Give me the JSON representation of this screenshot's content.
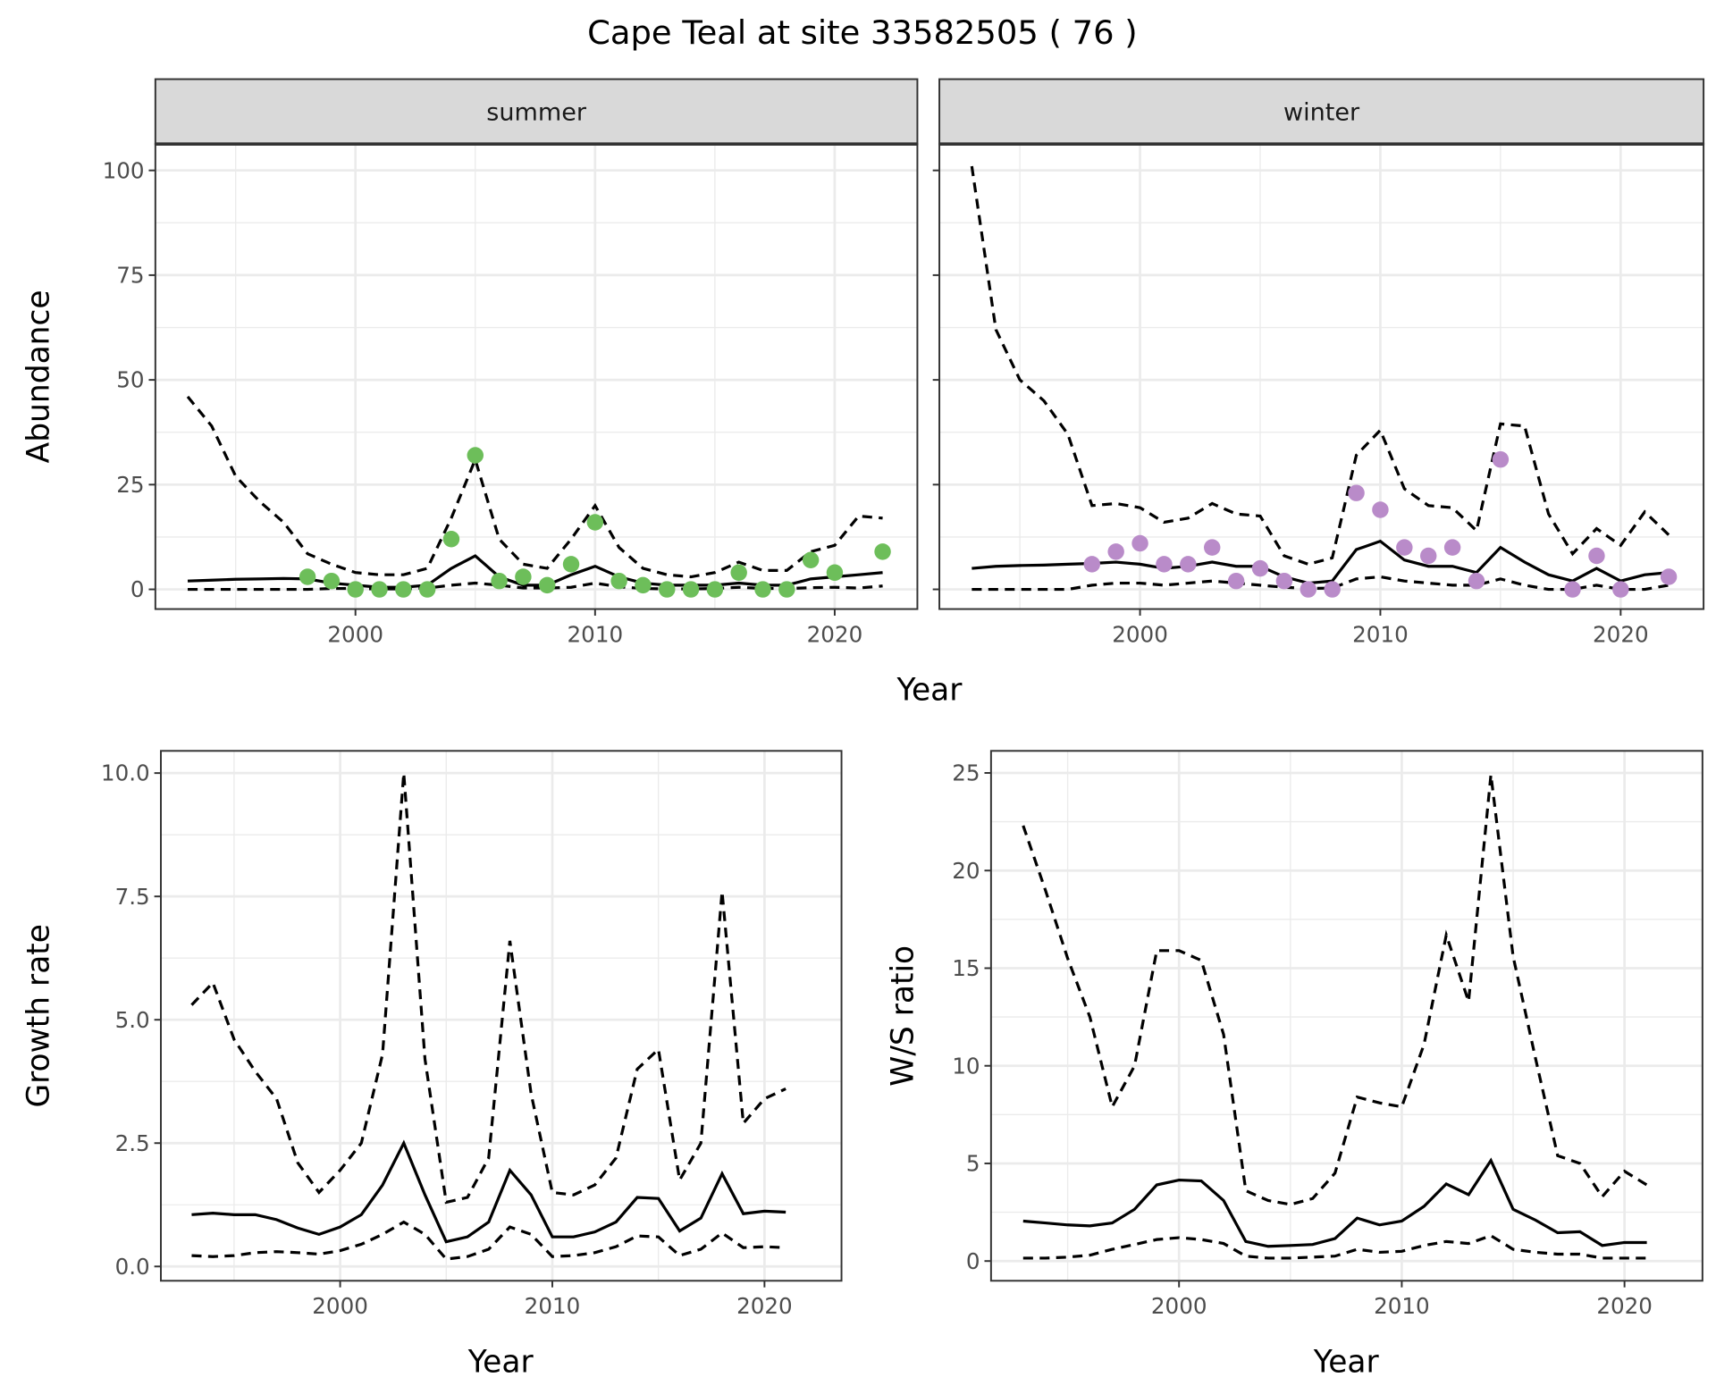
{
  "title": "Cape Teal at site 33582505 ( 76 )",
  "colors": {
    "summer": "#6dbe5a",
    "winter": "#b98bc9",
    "line": "#000000",
    "grid": "#ebebeb"
  },
  "chart_data": [
    {
      "type": "line",
      "panel": "summer",
      "strip_label": "summer",
      "xlabel": "Year",
      "ylabel": "Abundance",
      "xlim": [
        1991.65,
        2023.45
      ],
      "ylim": [
        -4.7,
        106.3
      ],
      "xticks": [
        "2000",
        "2010",
        "2020"
      ],
      "xtick_values": [
        2000,
        2010,
        2020
      ],
      "yticks": [
        "0",
        "25",
        "50",
        "75",
        "100"
      ],
      "ytick_values": [
        0,
        25,
        50,
        75,
        100
      ],
      "x": [
        1993,
        1994,
        1995,
        1996,
        1997,
        1998,
        1999,
        2000,
        2001,
        2002,
        2003,
        2004,
        2005,
        2006,
        2007,
        2008,
        2009,
        2010,
        2011,
        2012,
        2013,
        2014,
        2015,
        2016,
        2017,
        2018,
        2019,
        2020,
        2021,
        2022
      ],
      "series": [
        {
          "name": "mean",
          "style": "solid",
          "values": [
            2,
            2.2,
            2.4,
            2.5,
            2.6,
            2.5,
            1.5,
            1,
            0.5,
            0.5,
            1,
            5,
            8,
            3,
            1,
            1,
            3.5,
            5.5,
            3,
            1.5,
            1,
            1,
            1,
            1.5,
            1,
            1,
            2.5,
            3,
            3.5,
            4
          ]
        },
        {
          "name": "upper",
          "style": "dashed",
          "values": [
            46,
            39,
            27,
            21,
            16,
            8.5,
            6,
            4,
            3.5,
            3.5,
            5,
            17,
            31,
            12,
            6,
            5,
            12,
            20,
            10,
            5,
            3.5,
            3,
            4,
            6.5,
            4.5,
            4.5,
            9,
            10.5,
            17.5,
            17
          ]
        },
        {
          "name": "lower",
          "style": "dashed",
          "values": [
            0,
            0,
            0,
            0,
            0,
            0,
            0.2,
            0.2,
            0.1,
            0.1,
            0.3,
            1,
            1.5,
            1,
            0.3,
            0.3,
            0.5,
            1.5,
            0.6,
            0.2,
            0.1,
            0.1,
            0.2,
            0.5,
            0.2,
            0.2,
            0.4,
            0.5,
            0.3,
            0.8
          ]
        }
      ],
      "points": {
        "x": [
          1998,
          1999,
          2000,
          2001,
          2002,
          2003,
          2004,
          2005,
          2006,
          2007,
          2008,
          2009,
          2010,
          2011,
          2012,
          2013,
          2014,
          2015,
          2016,
          2017,
          2018,
          2019,
          2020,
          2022
        ],
        "y": [
          3,
          2,
          0,
          0,
          0,
          0,
          12,
          32,
          2,
          3,
          1,
          6,
          16,
          2,
          1,
          0,
          0,
          0,
          4,
          0,
          0,
          7,
          4,
          9
        ]
      }
    },
    {
      "type": "line",
      "panel": "winter",
      "strip_label": "winter",
      "xlabel": "Year",
      "ylabel": "Abundance",
      "xlim": [
        1991.65,
        2023.45
      ],
      "ylim": [
        -4.7,
        106.3
      ],
      "xticks": [
        "2000",
        "2010",
        "2020"
      ],
      "xtick_values": [
        2000,
        2010,
        2020
      ],
      "yticks": [],
      "ytick_values": [
        0,
        25,
        50,
        75,
        100
      ],
      "x": [
        1993,
        1994,
        1995,
        1996,
        1997,
        1998,
        1999,
        2000,
        2001,
        2002,
        2003,
        2004,
        2005,
        2006,
        2007,
        2008,
        2009,
        2010,
        2011,
        2012,
        2013,
        2014,
        2015,
        2016,
        2017,
        2018,
        2019,
        2020,
        2021,
        2022
      ],
      "series": [
        {
          "name": "mean",
          "style": "solid",
          "values": [
            5,
            5.5,
            5.7,
            5.8,
            6,
            6.2,
            6.5,
            6,
            5,
            5.5,
            6.5,
            5.5,
            5.5,
            3,
            1.5,
            2,
            9.5,
            11.5,
            7,
            5.5,
            5.5,
            4,
            10,
            6.5,
            3.5,
            2,
            5,
            2,
            3.5,
            4
          ]
        },
        {
          "name": "upper",
          "style": "dashed",
          "values": [
            101,
            62,
            50,
            45,
            37,
            20,
            20.5,
            19.5,
            16,
            17,
            20.5,
            18,
            17.5,
            8,
            6,
            7.5,
            32,
            38,
            24,
            20,
            19.5,
            14,
            39.5,
            39,
            18,
            8.5,
            14.5,
            10.5,
            18.5,
            13
          ]
        },
        {
          "name": "lower",
          "style": "dashed",
          "values": [
            0,
            0,
            0,
            0,
            0,
            1,
            1.5,
            1.5,
            1,
            1.5,
            2,
            1.5,
            1,
            0.5,
            0.2,
            0.3,
            2.5,
            3,
            2,
            1.5,
            1,
            1,
            2.5,
            1,
            0,
            0,
            1,
            0,
            0,
            1
          ]
        }
      ],
      "points": {
        "x": [
          1998,
          1999,
          2000,
          2001,
          2002,
          2003,
          2004,
          2005,
          2006,
          2007,
          2008,
          2009,
          2010,
          2011,
          2012,
          2013,
          2014,
          2015,
          2018,
          2019,
          2020,
          2022
        ],
        "y": [
          6,
          9,
          11,
          6,
          6,
          10,
          2,
          5,
          2,
          0,
          0,
          23,
          19,
          10,
          8,
          10,
          2,
          31,
          0,
          8,
          0,
          3
        ]
      }
    },
    {
      "type": "line",
      "panel": "growth",
      "xlabel": "Year",
      "ylabel": "Growth rate",
      "xlim": [
        1991.55,
        2023.63
      ],
      "ylim": [
        -0.29,
        10.45
      ],
      "xticks": [
        "2000",
        "2010",
        "2020"
      ],
      "xtick_values": [
        2000,
        2010,
        2020
      ],
      "yticks": [
        "0.0",
        "2.5",
        "5.0",
        "7.5",
        "10.0"
      ],
      "ytick_values": [
        0,
        2.5,
        5,
        7.5,
        10
      ],
      "x": [
        1993,
        1994,
        1995,
        1996,
        1997,
        1998,
        1999,
        2000,
        2001,
        2002,
        2003,
        2004,
        2005,
        2006,
        2007,
        2008,
        2009,
        2010,
        2011,
        2012,
        2013,
        2014,
        2015,
        2016,
        2017,
        2018,
        2019,
        2020,
        2021
      ],
      "series": [
        {
          "name": "mean",
          "style": "solid",
          "values": [
            1.05,
            1.08,
            1.05,
            1.05,
            0.95,
            0.78,
            0.65,
            0.8,
            1.05,
            1.65,
            2.5,
            1.45,
            0.5,
            0.6,
            0.9,
            1.95,
            1.45,
            0.6,
            0.6,
            0.7,
            0.9,
            1.4,
            1.38,
            0.72,
            0.98,
            1.88,
            1.07,
            1.12,
            1.1
          ]
        },
        {
          "name": "upper",
          "style": "dashed",
          "values": [
            5.3,
            5.75,
            4.6,
            3.95,
            3.4,
            2.1,
            1.5,
            1.95,
            2.5,
            4.3,
            10.0,
            4.2,
            1.3,
            1.4,
            2.2,
            6.6,
            3.5,
            1.5,
            1.45,
            1.65,
            2.2,
            4.0,
            4.4,
            1.75,
            2.5,
            7.6,
            2.9,
            3.4,
            3.6
          ]
        },
        {
          "name": "lower",
          "style": "dashed",
          "values": [
            0.22,
            0.2,
            0.22,
            0.28,
            0.3,
            0.28,
            0.25,
            0.32,
            0.45,
            0.65,
            0.9,
            0.65,
            0.15,
            0.2,
            0.35,
            0.8,
            0.65,
            0.2,
            0.22,
            0.28,
            0.4,
            0.62,
            0.6,
            0.22,
            0.35,
            0.68,
            0.38,
            0.4,
            0.38
          ]
        }
      ]
    },
    {
      "type": "line",
      "panel": "ratio",
      "xlabel": "Year",
      "ylabel": "W/S ratio",
      "xlim": [
        1991.56,
        2023.5
      ],
      "ylim": [
        -1.01,
        26.13
      ],
      "xticks": [
        "2000",
        "2010",
        "2020"
      ],
      "xtick_values": [
        2000,
        2010,
        2020
      ],
      "yticks": [
        "0",
        "5",
        "10",
        "15",
        "20",
        "25"
      ],
      "ytick_values": [
        0,
        5,
        10,
        15,
        20,
        25
      ],
      "x": [
        1993,
        1994,
        1995,
        1996,
        1997,
        1998,
        1999,
        2000,
        2001,
        2002,
        2003,
        2004,
        2005,
        2006,
        2007,
        2008,
        2009,
        2010,
        2011,
        2012,
        2013,
        2014,
        2015,
        2016,
        2017,
        2018,
        2019,
        2020,
        2021
      ],
      "series": [
        {
          "name": "mean",
          "style": "solid",
          "values": [
            2.05,
            1.95,
            1.85,
            1.8,
            1.95,
            2.65,
            3.9,
            4.15,
            4.1,
            3.1,
            1.0,
            0.75,
            0.8,
            0.85,
            1.15,
            2.2,
            1.85,
            2.05,
            2.8,
            3.95,
            3.4,
            5.15,
            2.65,
            2.1,
            1.45,
            1.5,
            0.8,
            0.95,
            0.95
          ]
        },
        {
          "name": "upper",
          "style": "dashed",
          "values": [
            22.3,
            19,
            15.5,
            12.5,
            7.9,
            10,
            15.9,
            15.9,
            15.4,
            11.6,
            3.6,
            3.1,
            2.9,
            3.2,
            4.5,
            8.4,
            8.1,
            7.9,
            11.1,
            16.7,
            13.3,
            24.9,
            15.6,
            10.4,
            5.4,
            5.0,
            3.3,
            4.6,
            3.9
          ]
        },
        {
          "name": "lower",
          "style": "dashed",
          "values": [
            0.15,
            0.15,
            0.2,
            0.3,
            0.6,
            0.85,
            1.1,
            1.2,
            1.1,
            0.9,
            0.25,
            0.15,
            0.15,
            0.2,
            0.25,
            0.6,
            0.45,
            0.5,
            0.8,
            1.0,
            0.9,
            1.3,
            0.6,
            0.45,
            0.35,
            0.35,
            0.15,
            0.15,
            0.15
          ]
        }
      ]
    }
  ]
}
